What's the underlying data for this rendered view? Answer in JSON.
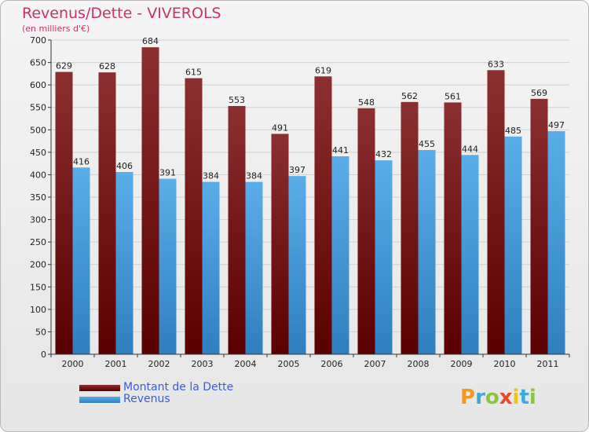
{
  "chart_data": {
    "type": "bar",
    "title": "Revenus/Dette - VIVEROLS",
    "subtitle": "(en milliers d'€)",
    "categories": [
      "2000",
      "2001",
      "2002",
      "2003",
      "2004",
      "2005",
      "2006",
      "2007",
      "2008",
      "2009",
      "2010",
      "2011"
    ],
    "series": [
      {
        "name": "Montant de la Dette",
        "color": "#7a1a1a",
        "values": [
          629,
          628,
          684,
          615,
          553,
          491,
          619,
          548,
          562,
          561,
          633,
          569
        ]
      },
      {
        "name": "Revenus",
        "color": "#3d98e0",
        "values": [
          416,
          406,
          391,
          384,
          384,
          397,
          441,
          432,
          455,
          444,
          485,
          497
        ]
      }
    ],
    "ylim": [
      0,
      700
    ],
    "yticks": [
      0,
      50,
      100,
      150,
      200,
      250,
      300,
      350,
      400,
      450,
      500,
      550,
      600,
      650,
      700
    ],
    "grid": true,
    "legend_position": "bottom-left"
  },
  "logo": {
    "letters": [
      "P",
      "r",
      "o",
      "x",
      "i",
      "t",
      "i"
    ],
    "colors": [
      "#f29a1f",
      "#3fa9d8",
      "#8cc63f",
      "#e8482b",
      "#f2c21b",
      "#3fa9d8",
      "#8cc63f"
    ]
  }
}
